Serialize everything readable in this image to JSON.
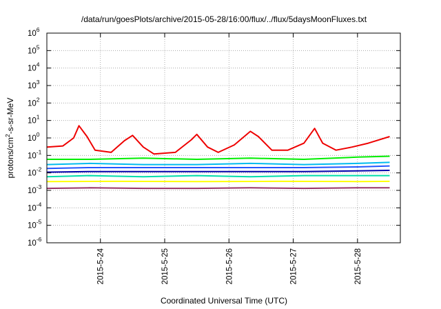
{
  "chart_data": {
    "type": "line",
    "title": "/data/run/goesPlots/archive/2015-05-28/16:00/flux/../flux/5daysMoonFluxes.txt",
    "xlabel": "Coordinated Universal Time (UTC)",
    "ylabel_parts": [
      "protons/cm",
      "2",
      "-s-sr-MeV"
    ],
    "yscale": "log",
    "ylim": [
      1e-06,
      1000000.0
    ],
    "y_ticks": [
      {
        "base": "10",
        "exp": "-6"
      },
      {
        "base": "10",
        "exp": "-5"
      },
      {
        "base": "10",
        "exp": "-4"
      },
      {
        "base": "10",
        "exp": "-3"
      },
      {
        "base": "10",
        "exp": "-2"
      },
      {
        "base": "10",
        "exp": "-1"
      },
      {
        "base": "10",
        "exp": "0"
      },
      {
        "base": "10",
        "exp": "1"
      },
      {
        "base": "10",
        "exp": "2"
      },
      {
        "base": "10",
        "exp": "3"
      },
      {
        "base": "10",
        "exp": "4"
      },
      {
        "base": "10",
        "exp": "5"
      },
      {
        "base": "10",
        "exp": "6"
      }
    ],
    "xlim": [
      "2015-05-23T04:00",
      "2015-05-28T16:00"
    ],
    "x_ticks": [
      "2015-5-24",
      "2015-5-25",
      "2015-5-26",
      "2015-5-27",
      "2015-5-28"
    ],
    "grid": true,
    "legend": "none",
    "series_note_x_units": "hours since 2015-05-23T00:00",
    "series": [
      {
        "color": "#ee0000",
        "points": [
          [
            4,
            0.3
          ],
          [
            10,
            0.35
          ],
          [
            14,
            1.0
          ],
          [
            16,
            5.0
          ],
          [
            19,
            1.2
          ],
          [
            22,
            0.2
          ],
          [
            28,
            0.15
          ],
          [
            33,
            0.7
          ],
          [
            36,
            1.4
          ],
          [
            40,
            0.3
          ],
          [
            44,
            0.12
          ],
          [
            52,
            0.15
          ],
          [
            58,
            0.8
          ],
          [
            60,
            1.6
          ],
          [
            64,
            0.3
          ],
          [
            68,
            0.15
          ],
          [
            74,
            0.4
          ],
          [
            80,
            2.4
          ],
          [
            83,
            1.2
          ],
          [
            88,
            0.2
          ],
          [
            94,
            0.2
          ],
          [
            100,
            0.5
          ],
          [
            104,
            3.5
          ],
          [
            107,
            0.5
          ],
          [
            112,
            0.2
          ],
          [
            118,
            0.3
          ],
          [
            124,
            0.5
          ],
          [
            132,
            1.2
          ]
        ]
      },
      {
        "color": "#00ee00",
        "points": [
          [
            4,
            0.06
          ],
          [
            20,
            0.06
          ],
          [
            40,
            0.07
          ],
          [
            60,
            0.06
          ],
          [
            80,
            0.07
          ],
          [
            100,
            0.06
          ],
          [
            120,
            0.08
          ],
          [
            132,
            0.09
          ]
        ]
      },
      {
        "color": "#00bbee",
        "points": [
          [
            4,
            0.03
          ],
          [
            20,
            0.035
          ],
          [
            40,
            0.03
          ],
          [
            60,
            0.03
          ],
          [
            80,
            0.035
          ],
          [
            100,
            0.03
          ],
          [
            120,
            0.035
          ],
          [
            132,
            0.04
          ]
        ]
      },
      {
        "color": "#2255ff",
        "points": [
          [
            4,
            0.018
          ],
          [
            20,
            0.02
          ],
          [
            40,
            0.02
          ],
          [
            60,
            0.02
          ],
          [
            80,
            0.02
          ],
          [
            100,
            0.02
          ],
          [
            120,
            0.022
          ],
          [
            132,
            0.025
          ]
        ]
      },
      {
        "color": "#0000aa",
        "points": [
          [
            4,
            0.011
          ],
          [
            20,
            0.012
          ],
          [
            40,
            0.012
          ],
          [
            60,
            0.012
          ],
          [
            80,
            0.012
          ],
          [
            100,
            0.012
          ],
          [
            120,
            0.013
          ],
          [
            132,
            0.014
          ]
        ]
      },
      {
        "color": "#00ddaa",
        "points": [
          [
            4,
            0.006
          ],
          [
            20,
            0.007
          ],
          [
            40,
            0.006
          ],
          [
            60,
            0.007
          ],
          [
            80,
            0.006
          ],
          [
            100,
            0.007
          ],
          [
            120,
            0.007
          ],
          [
            132,
            0.007
          ]
        ]
      },
      {
        "color": "#ffff00",
        "points": [
          [
            4,
            0.0032
          ],
          [
            30,
            0.0033
          ],
          [
            60,
            0.0032
          ],
          [
            90,
            0.0033
          ],
          [
            120,
            0.0032
          ],
          [
            132,
            0.0033
          ]
        ]
      },
      {
        "color": "#993366",
        "points": [
          [
            4,
            0.0013
          ],
          [
            20,
            0.0014
          ],
          [
            40,
            0.0013
          ],
          [
            60,
            0.0013
          ],
          [
            80,
            0.0014
          ],
          [
            100,
            0.0013
          ],
          [
            120,
            0.0014
          ],
          [
            132,
            0.0014
          ]
        ]
      }
    ]
  }
}
